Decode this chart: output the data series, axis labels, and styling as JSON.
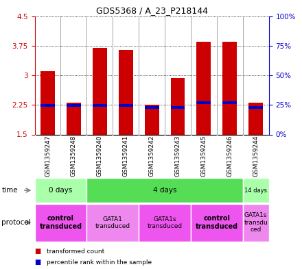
{
  "title": "GDS5368 / A_23_P218144",
  "samples": [
    "GSM1359247",
    "GSM1359248",
    "GSM1359240",
    "GSM1359241",
    "GSM1359242",
    "GSM1359243",
    "GSM1359245",
    "GSM1359246",
    "GSM1359244"
  ],
  "red_bottom": [
    1.5,
    1.5,
    1.5,
    1.5,
    1.5,
    1.5,
    1.5,
    1.5,
    1.5
  ],
  "red_top": [
    3.1,
    2.3,
    3.7,
    3.65,
    2.25,
    2.93,
    3.85,
    3.85,
    2.3
  ],
  "blue_bottom": [
    2.2,
    2.2,
    2.2,
    2.2,
    2.15,
    2.15,
    2.27,
    2.27,
    2.15
  ],
  "blue_top": [
    2.27,
    2.27,
    2.27,
    2.27,
    2.22,
    2.22,
    2.34,
    2.34,
    2.22
  ],
  "ylim_left": [
    1.5,
    4.5
  ],
  "ylim_right": [
    0,
    100
  ],
  "yticks_left": [
    1.5,
    2.25,
    3.0,
    3.75,
    4.5
  ],
  "yticks_right": [
    0,
    25,
    50,
    75,
    100
  ],
  "ytick_labels_left": [
    "1.5",
    "2.25",
    "3",
    "3.75",
    "4.5"
  ],
  "ytick_labels_right": [
    "0%",
    "25%",
    "50%",
    "75%",
    "100%"
  ],
  "bar_color_red": "#cc0000",
  "bar_color_blue": "#0000cc",
  "bar_width": 0.55,
  "grid_color": "black",
  "time_groups": [
    {
      "label": "0 days",
      "start": 0,
      "end": 2,
      "color": "#aaffaa"
    },
    {
      "label": "4 days",
      "start": 2,
      "end": 8,
      "color": "#55dd55"
    },
    {
      "label": "14 days",
      "start": 8,
      "end": 9,
      "color": "#aaffaa"
    }
  ],
  "protocol_groups": [
    {
      "label": "control\ntransduced",
      "start": 0,
      "end": 2,
      "color": "#ee55ee",
      "bold": true
    },
    {
      "label": "GATA1\ntransduced",
      "start": 2,
      "end": 4,
      "color": "#ee88ee",
      "bold": false
    },
    {
      "label": "GATA1s\ntransduced",
      "start": 4,
      "end": 6,
      "color": "#ee55ee",
      "bold": false
    },
    {
      "label": "control\ntransduced",
      "start": 6,
      "end": 8,
      "color": "#ee55ee",
      "bold": true
    },
    {
      "label": "GATA1s\ntransdu\nced",
      "start": 8,
      "end": 9,
      "color": "#ee88ee",
      "bold": false
    }
  ],
  "label_time": "time",
  "label_protocol": "protocol",
  "background_color": "#ffffff",
  "plot_bg": "#ffffff",
  "axis_color_left": "#cc0000",
  "axis_color_right": "#0000cc",
  "sample_bg": "#cccccc",
  "legend_red_label": "transformed count",
  "legend_blue_label": "percentile rank within the sample"
}
